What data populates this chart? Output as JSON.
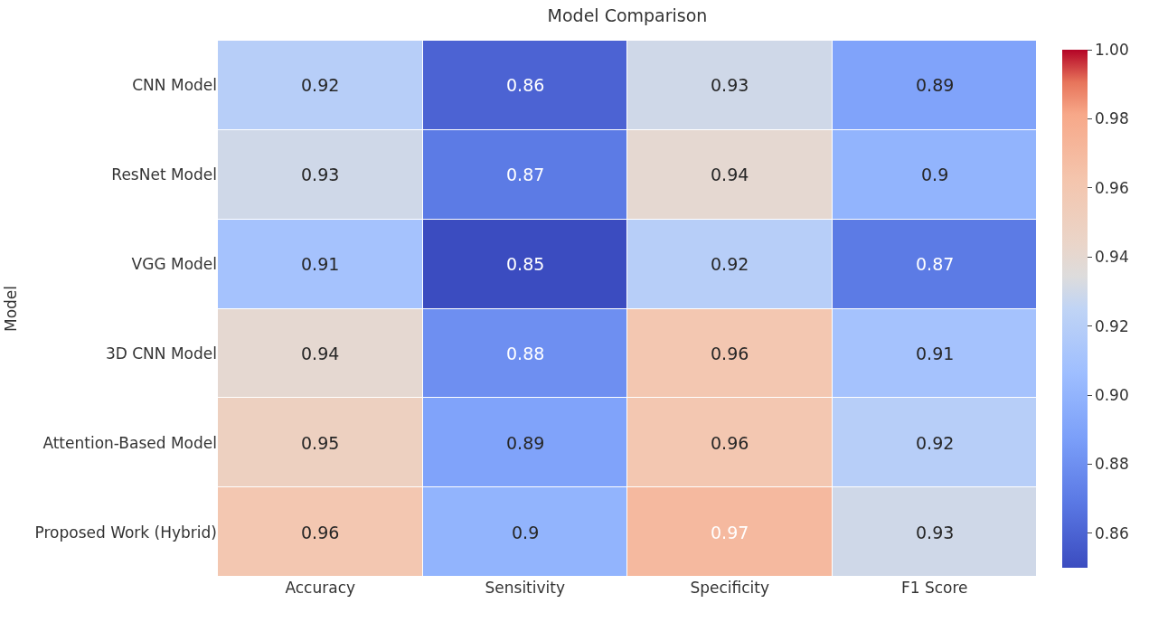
{
  "chart_data": {
    "type": "heatmap",
    "title": "Model Comparison",
    "ylabel": "Model",
    "categories": [
      "Accuracy",
      "Sensitivity",
      "Specificity",
      "F1 Score"
    ],
    "y_categories": [
      "CNN Model",
      "ResNet Model",
      "VGG Model",
      "3D CNN Model",
      "Attention-Based Model",
      "Proposed Work (Hybrid)"
    ],
    "cells": [
      [
        0.92,
        0.86,
        0.93,
        0.89
      ],
      [
        0.93,
        0.87,
        0.94,
        0.9
      ],
      [
        0.91,
        0.85,
        0.92,
        0.87
      ],
      [
        0.94,
        0.88,
        0.96,
        0.91
      ],
      [
        0.95,
        0.89,
        0.96,
        0.92
      ],
      [
        0.96,
        0.9,
        0.97,
        0.93
      ]
    ],
    "clim": [
      0.85,
      1.0
    ],
    "cticks": [
      {
        "value": 0.86,
        "label": "0.86"
      },
      {
        "value": 0.88,
        "label": "0.88"
      },
      {
        "value": 0.9,
        "label": "0.90"
      },
      {
        "value": 0.92,
        "label": "0.92"
      },
      {
        "value": 0.94,
        "label": "0.94"
      },
      {
        "value": 0.96,
        "label": "0.96"
      },
      {
        "value": 0.98,
        "label": "0.98"
      },
      {
        "value": 1.0,
        "label": "1.00"
      }
    ],
    "data_labels": true
  }
}
